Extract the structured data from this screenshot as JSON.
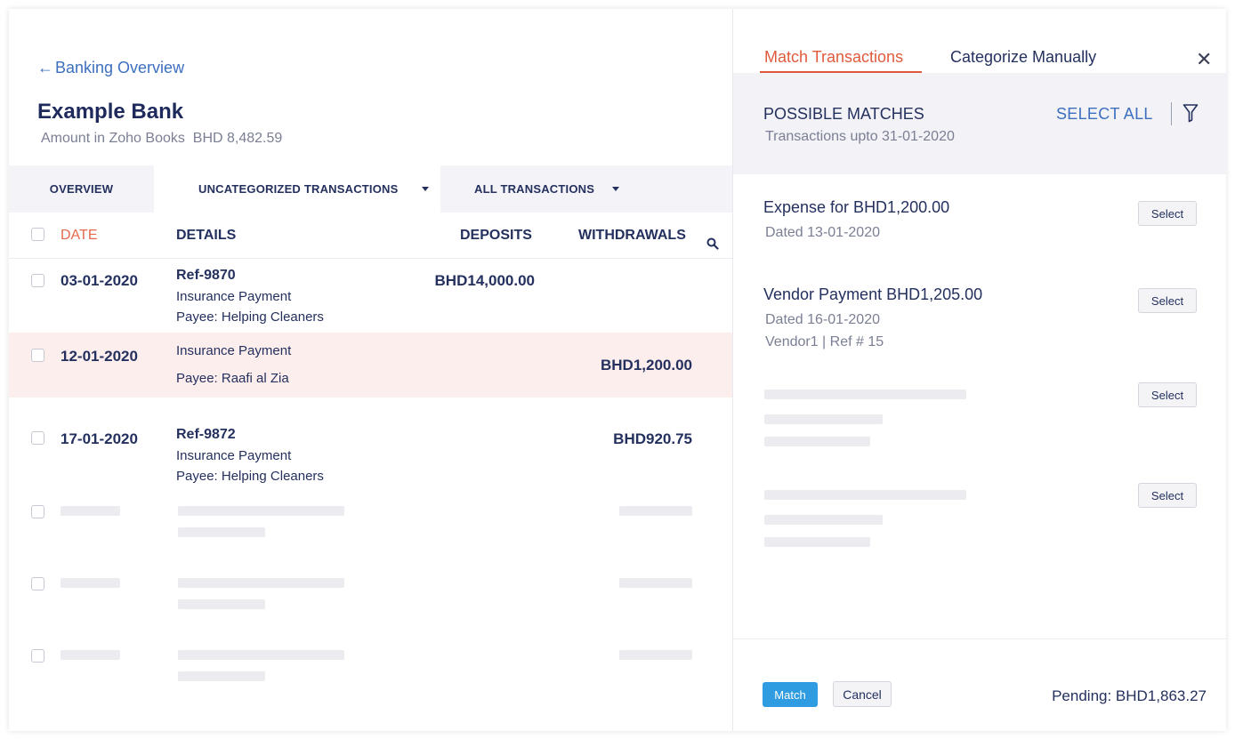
{
  "header": {
    "back_label": "Banking Overview",
    "bank_name": "Example Bank",
    "amount_label": "Amount in Zoho Books",
    "amount_value": "BHD 8,482.59"
  },
  "tabs": [
    {
      "label": "OVERVIEW"
    },
    {
      "label": "UNCATEGORIZED TRANSACTIONS"
    },
    {
      "label": "ALL TRANSACTIONS"
    }
  ],
  "table": {
    "columns": {
      "date": "DATE",
      "details": "DETAILS",
      "deposits": "DEPOSITS",
      "withdrawals": "WITHDRAWALS"
    },
    "rows": [
      {
        "date": "03-01-2020",
        "ref": "Ref-9870",
        "desc": "Insurance Payment",
        "payee": "Payee: Helping Cleaners",
        "deposit": "BHD14,000.00",
        "withdrawal": ""
      },
      {
        "date": "12-01-2020",
        "ref": "",
        "desc": "Insurance Payment",
        "payee": "Payee: Raafi al Zia",
        "deposit": "",
        "withdrawal": "BHD1,200.00"
      },
      {
        "date": "17-01-2020",
        "ref": "Ref-9872",
        "desc": "Insurance Payment",
        "payee": "Payee: Helping Cleaners",
        "deposit": "",
        "withdrawal": "BHD920.75"
      }
    ]
  },
  "panel": {
    "tabs": [
      {
        "label": "Match Transactions"
      },
      {
        "label": "Categorize Manually"
      }
    ],
    "close_icon": "close-icon",
    "matches_title": "POSSIBLE MATCHES",
    "matches_subtitle": "Transactions upto 31-01-2020",
    "select_all": "SELECT ALL",
    "filter_icon": "filter-icon",
    "matches": [
      {
        "title": "Expense for BHD1,200.00",
        "dated": "Dated 13-01-2020",
        "extra": "",
        "select_label": "Select"
      },
      {
        "title": "Vendor Payment BHD1,205.00",
        "dated": "Dated 16-01-2020",
        "extra": "Vendor1 | Ref # 15",
        "select_label": "Select"
      },
      {
        "select_label": "Select"
      },
      {
        "select_label": "Select"
      }
    ],
    "match_button": "Match",
    "cancel_button": "Cancel",
    "pending": "Pending: BHD1,863.27"
  },
  "colors": {
    "accent": "#e05a3c",
    "link": "#3d6fbf",
    "primary_button": "#2f9be0",
    "highlight_row": "#fdeeee",
    "text": "#24305e"
  }
}
